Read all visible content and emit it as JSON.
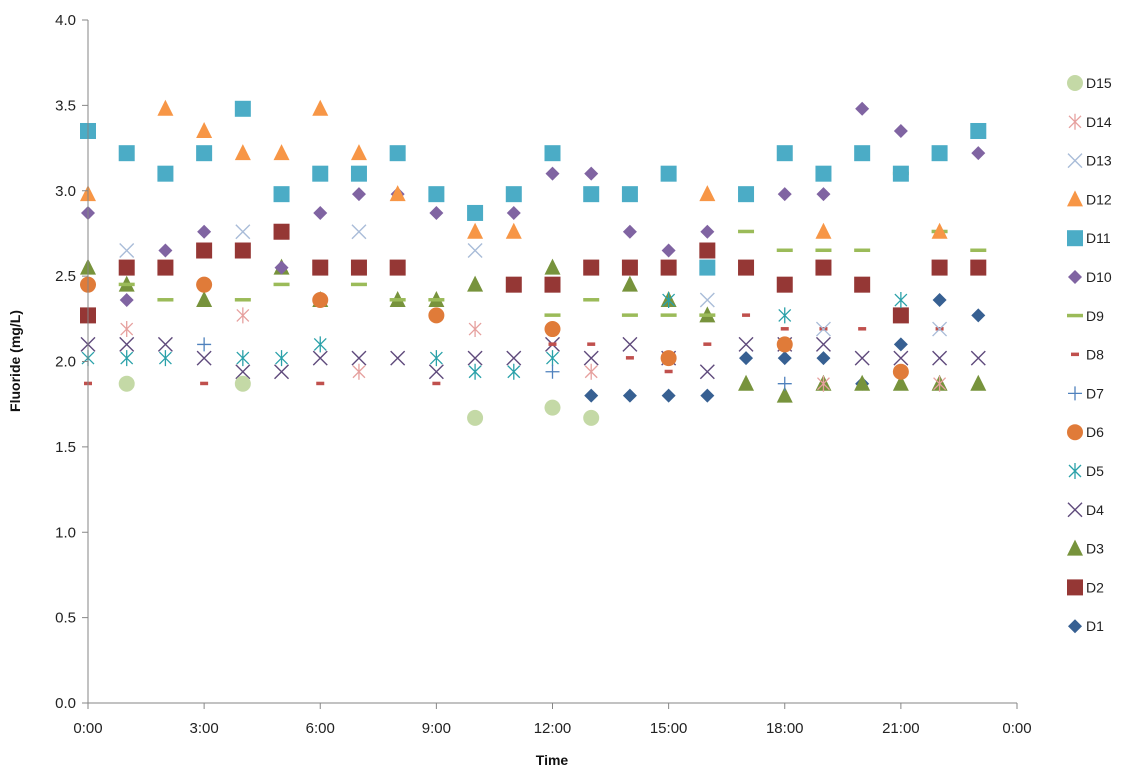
{
  "chart_data": {
    "type": "scatter",
    "title": "",
    "xlabel": "Time",
    "ylabel": "Fluoride (mg/L)",
    "xlim": [
      0,
      24
    ],
    "ylim": [
      0,
      4
    ],
    "x_ticks": [
      "0:00",
      "3:00",
      "6:00",
      "9:00",
      "12:00",
      "15:00",
      "18:00",
      "21:00",
      "0:00"
    ],
    "y_ticks": [
      "0.0",
      "0.5",
      "1.0",
      "1.5",
      "2.0",
      "2.5",
      "3.0",
      "3.5",
      "4.0"
    ],
    "grid": false,
    "legend_position": "right",
    "series": [
      {
        "name": "D15",
        "marker": "circle",
        "color": "#c4d9a6",
        "x": [
          1,
          4,
          10,
          12,
          13
        ],
        "y": [
          1.87,
          1.87,
          1.67,
          1.73,
          1.67
        ]
      },
      {
        "name": "D14",
        "marker": "asterisk",
        "color": "#e6a09e",
        "x": [
          1,
          4,
          7,
          10,
          13,
          19,
          22
        ],
        "y": [
          2.19,
          2.27,
          1.94,
          2.19,
          1.94,
          1.87,
          1.87
        ]
      },
      {
        "name": "D13",
        "marker": "x",
        "color": "#a9bcd8",
        "x": [
          1,
          4,
          7,
          10,
          16,
          19,
          22
        ],
        "y": [
          2.65,
          2.76,
          2.76,
          2.65,
          2.36,
          2.19,
          2.19
        ]
      },
      {
        "name": "D12",
        "marker": "triangle",
        "color": "#f79646",
        "x": [
          0,
          2,
          3,
          4,
          5,
          6,
          7,
          8,
          10,
          11,
          16,
          19,
          22
        ],
        "y": [
          2.98,
          3.48,
          3.35,
          3.22,
          3.22,
          3.48,
          3.22,
          2.98,
          2.76,
          2.76,
          2.98,
          2.76,
          2.76
        ]
      },
      {
        "name": "D11",
        "marker": "square",
        "color": "#4bacc6",
        "x": [
          0,
          1,
          2,
          3,
          4,
          5,
          6,
          7,
          8,
          9,
          10,
          11,
          12,
          13,
          14,
          15,
          16,
          17,
          18,
          19,
          20,
          21,
          22,
          23
        ],
        "y": [
          3.35,
          3.22,
          3.1,
          3.22,
          3.48,
          2.98,
          3.1,
          3.1,
          3.22,
          2.98,
          2.87,
          2.98,
          3.22,
          2.98,
          2.98,
          3.1,
          2.55,
          2.98,
          3.22,
          3.1,
          3.22,
          3.1,
          3.22,
          3.35
        ]
      },
      {
        "name": "D10",
        "marker": "diamond",
        "color": "#8064a2",
        "x": [
          0,
          1,
          2,
          3,
          5,
          6,
          7,
          8,
          9,
          10,
          11,
          12,
          13,
          14,
          15,
          16,
          17,
          18,
          19,
          20,
          21,
          22,
          23
        ],
        "y": [
          2.87,
          2.36,
          2.65,
          2.76,
          2.55,
          2.87,
          2.98,
          2.98,
          2.87,
          2.87,
          2.87,
          3.1,
          3.1,
          2.76,
          2.65,
          2.76,
          2.98,
          2.98,
          2.98,
          3.48,
          3.35,
          3.22,
          3.22
        ]
      },
      {
        "name": "D9",
        "marker": "dash",
        "color": "#9bbb59",
        "x": [
          1,
          2,
          4,
          5,
          7,
          8,
          9,
          12,
          13,
          14,
          15,
          16,
          17,
          18,
          19,
          20,
          21,
          22,
          23
        ],
        "y": [
          2.45,
          2.36,
          2.36,
          2.45,
          2.45,
          2.36,
          2.36,
          2.27,
          2.36,
          2.27,
          2.27,
          2.27,
          2.76,
          2.65,
          2.65,
          2.65,
          3.1,
          2.76,
          2.65
        ]
      },
      {
        "name": "D8",
        "marker": "smalldash",
        "color": "#c0504d",
        "x": [
          0,
          3,
          6,
          9,
          12,
          13,
          14,
          15,
          16,
          17,
          18,
          19,
          20,
          22
        ],
        "y": [
          1.87,
          1.87,
          1.87,
          1.87,
          2.1,
          2.1,
          2.02,
          1.94,
          2.1,
          2.27,
          2.19,
          2.19,
          2.19,
          2.19
        ]
      },
      {
        "name": "D7",
        "marker": "plus",
        "color": "#4f81bd",
        "x": [
          3,
          12,
          18
        ],
        "y": [
          2.1,
          1.94,
          1.87
        ]
      },
      {
        "name": "D6",
        "marker": "circle",
        "color": "#e07b39",
        "x": [
          0,
          3,
          6,
          9,
          12,
          15,
          18,
          21
        ],
        "y": [
          2.45,
          2.45,
          2.36,
          2.27,
          2.19,
          2.02,
          2.1,
          1.94
        ]
      },
      {
        "name": "D5",
        "marker": "asterisk",
        "color": "#2aa1a9",
        "x": [
          0,
          1,
          2,
          4,
          5,
          6,
          9,
          10,
          11,
          12,
          15,
          18,
          21
        ],
        "y": [
          2.02,
          2.02,
          2.02,
          2.02,
          2.02,
          2.1,
          2.02,
          1.94,
          1.94,
          2.02,
          2.36,
          2.27,
          2.36
        ]
      },
      {
        "name": "D4",
        "marker": "x",
        "color": "#5f4a7c",
        "x": [
          0,
          1,
          2,
          3,
          4,
          5,
          6,
          7,
          8,
          9,
          10,
          11,
          12,
          13,
          14,
          15,
          16,
          17,
          18,
          19,
          20,
          21,
          22,
          23
        ],
        "y": [
          2.1,
          2.1,
          2.1,
          2.02,
          1.94,
          1.94,
          2.02,
          2.02,
          2.02,
          1.94,
          2.02,
          2.02,
          2.1,
          2.02,
          2.1,
          2.02,
          1.94,
          2.1,
          2.1,
          2.1,
          2.02,
          2.02,
          2.02,
          2.02
        ]
      },
      {
        "name": "D3",
        "marker": "triangle",
        "color": "#77933c",
        "x": [
          0,
          1,
          3,
          5,
          6,
          8,
          9,
          10,
          12,
          14,
          15,
          16,
          17,
          18,
          19,
          20,
          21,
          22,
          23
        ],
        "y": [
          2.55,
          2.45,
          2.36,
          2.55,
          2.36,
          2.36,
          2.36,
          2.45,
          2.55,
          2.45,
          2.36,
          2.27,
          1.87,
          1.8,
          1.87,
          1.87,
          1.87,
          1.87,
          1.87
        ]
      },
      {
        "name": "D2",
        "marker": "square",
        "color": "#953735",
        "x": [
          0,
          1,
          2,
          3,
          4,
          5,
          6,
          7,
          8,
          11,
          12,
          13,
          14,
          15,
          16,
          17,
          18,
          19,
          20,
          21,
          22,
          23
        ],
        "y": [
          2.27,
          2.55,
          2.55,
          2.65,
          2.65,
          2.76,
          2.55,
          2.55,
          2.55,
          2.45,
          2.45,
          2.55,
          2.55,
          2.55,
          2.65,
          2.55,
          2.45,
          2.55,
          2.45,
          2.27,
          2.55,
          2.55
        ]
      },
      {
        "name": "D1",
        "marker": "diamond",
        "color": "#376092",
        "x": [
          13,
          14,
          15,
          16,
          17,
          18,
          19,
          20,
          21,
          22,
          23
        ],
        "y": [
          1.8,
          1.8,
          1.8,
          1.8,
          2.02,
          2.02,
          2.02,
          1.87,
          2.1,
          2.36,
          2.27
        ]
      }
    ]
  }
}
